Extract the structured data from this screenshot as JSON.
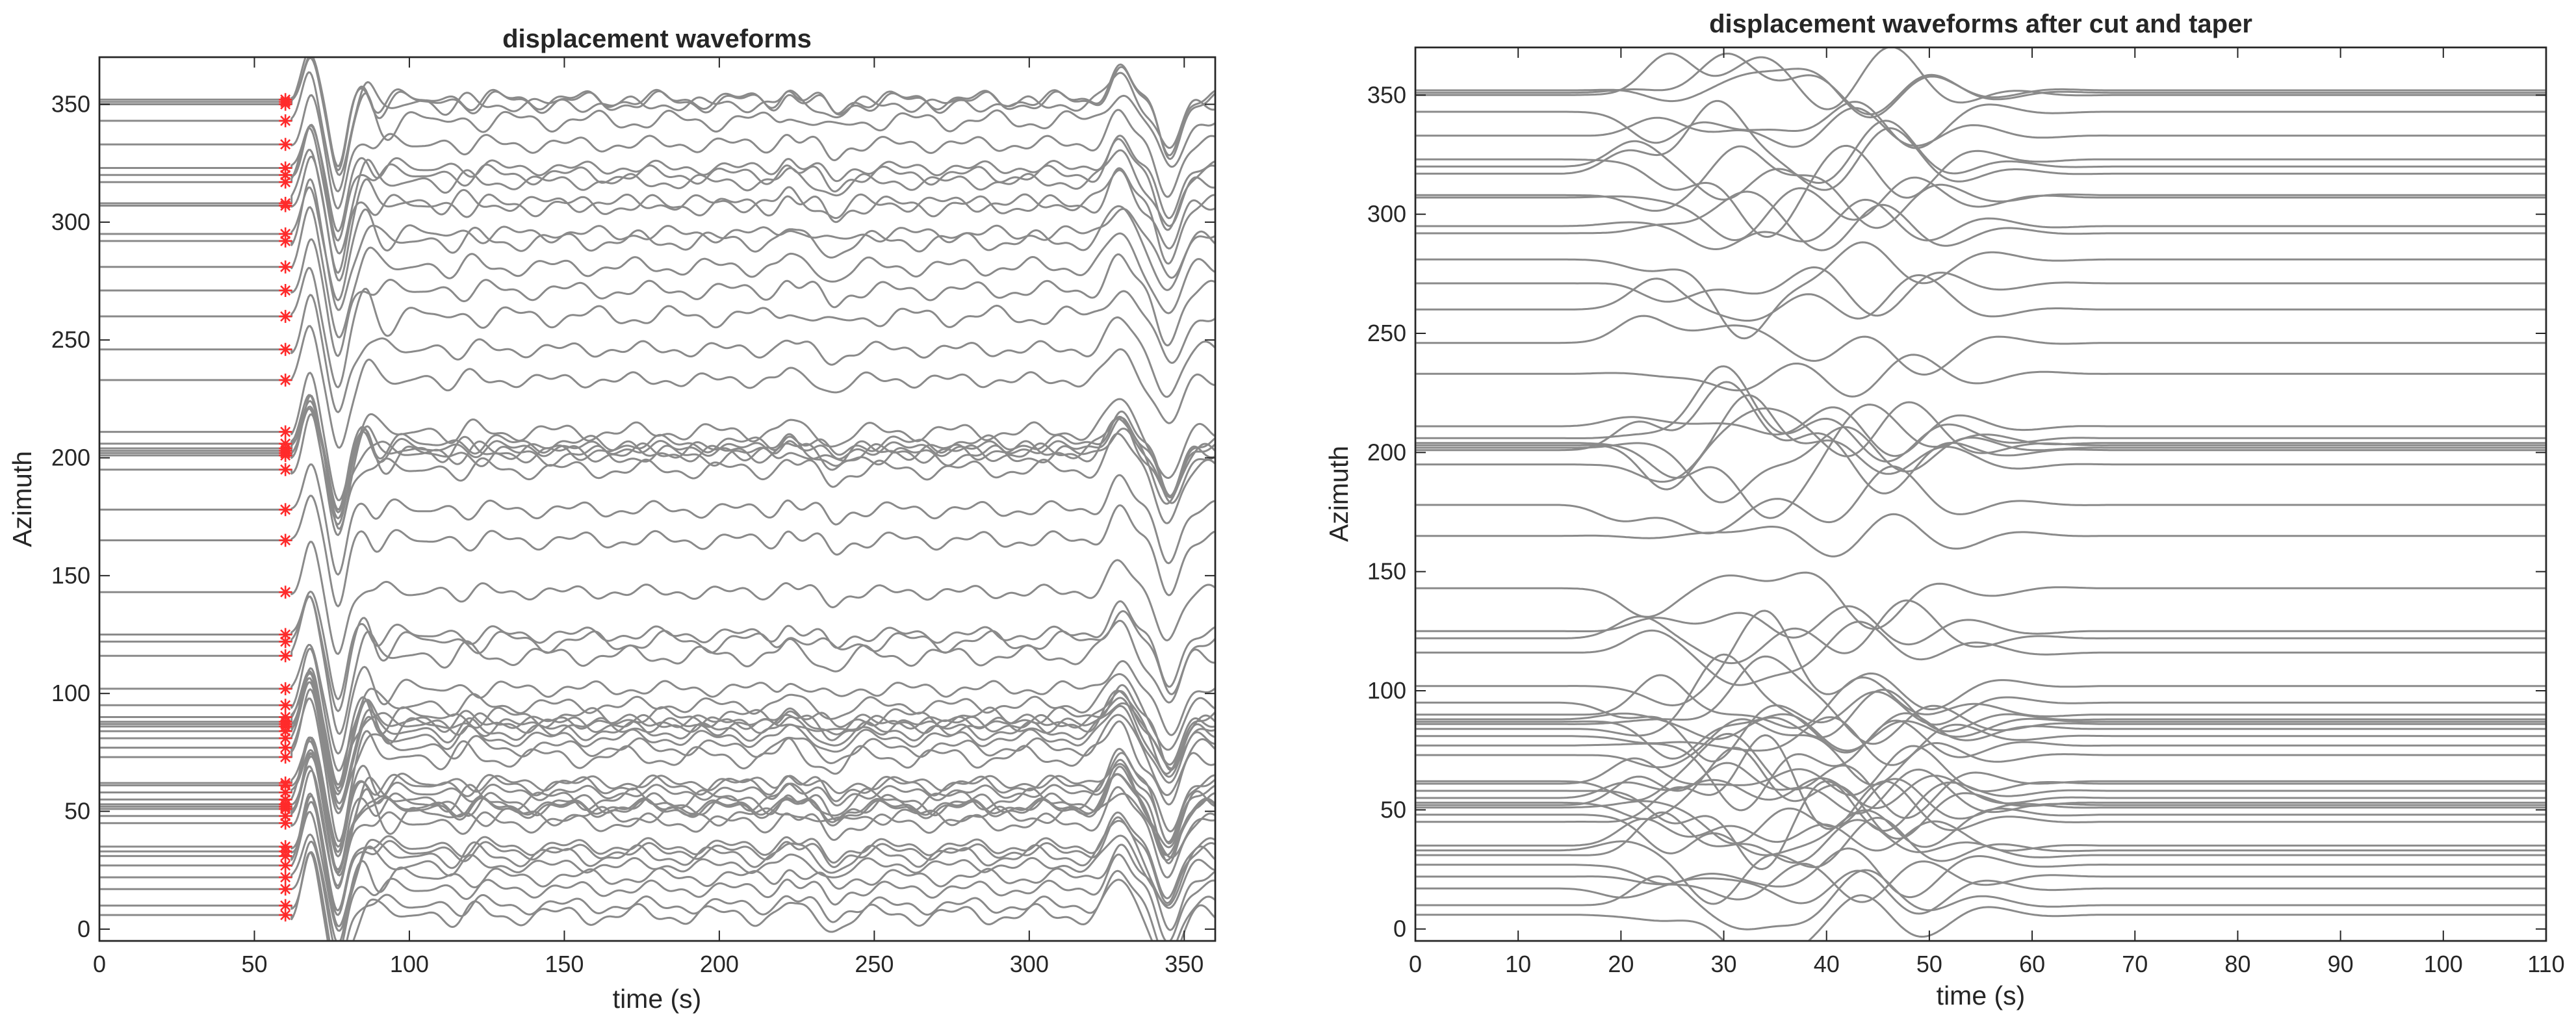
{
  "chart_data": [
    {
      "type": "line",
      "title": "displacement waveforms",
      "xlabel": "time (s)",
      "ylabel": "Azimuth",
      "xlim": [
        0,
        360
      ],
      "ylim": [
        -5,
        370
      ],
      "xticks": [
        0,
        50,
        100,
        150,
        200,
        250,
        300,
        350
      ],
      "yticks": [
        0,
        50,
        100,
        150,
        200,
        250,
        300,
        350
      ],
      "grid": false,
      "line_color": "#8a8a8a",
      "trace_azimuths": [
        6,
        10,
        17,
        22,
        27,
        31,
        33,
        35,
        45,
        48,
        51,
        52,
        53,
        55,
        58,
        61,
        62,
        73,
        77,
        81,
        84,
        86,
        87,
        88,
        90,
        95,
        102,
        116,
        122,
        125,
        143,
        165,
        178,
        195,
        201,
        202,
        203,
        204,
        206,
        211,
        233,
        246,
        260,
        271,
        281,
        292,
        295,
        307,
        308,
        317,
        320,
        323,
        333,
        343,
        350,
        351,
        352
      ],
      "pick_marker": {
        "symbol": "*",
        "color": "#ff2a2a",
        "time": 60
      },
      "signal_start_time": 62,
      "trace_end_time": 360
    },
    {
      "type": "line",
      "title": "displacement waveforms after cut and taper",
      "xlabel": "time (s)",
      "ylabel": "Azimuth",
      "xlim": [
        0,
        110
      ],
      "ylim": [
        -5,
        370
      ],
      "xticks": [
        0,
        10,
        20,
        30,
        40,
        50,
        60,
        70,
        80,
        90,
        100,
        110
      ],
      "yticks": [
        0,
        50,
        100,
        150,
        200,
        250,
        300,
        350
      ],
      "grid": false,
      "line_color": "#8a8a8a",
      "trace_azimuths": [
        6,
        10,
        17,
        22,
        27,
        31,
        33,
        35,
        45,
        48,
        51,
        52,
        53,
        55,
        58,
        61,
        62,
        73,
        77,
        81,
        84,
        86,
        87,
        88,
        90,
        95,
        102,
        116,
        122,
        125,
        143,
        165,
        178,
        195,
        201,
        202,
        203,
        204,
        206,
        211,
        233,
        246,
        260,
        271,
        281,
        292,
        295,
        307,
        308,
        317,
        320,
        323,
        333,
        343,
        350,
        351,
        352
      ],
      "taper_start_time": 14,
      "taper_end_time": 68,
      "trace_end_time": 110
    }
  ]
}
